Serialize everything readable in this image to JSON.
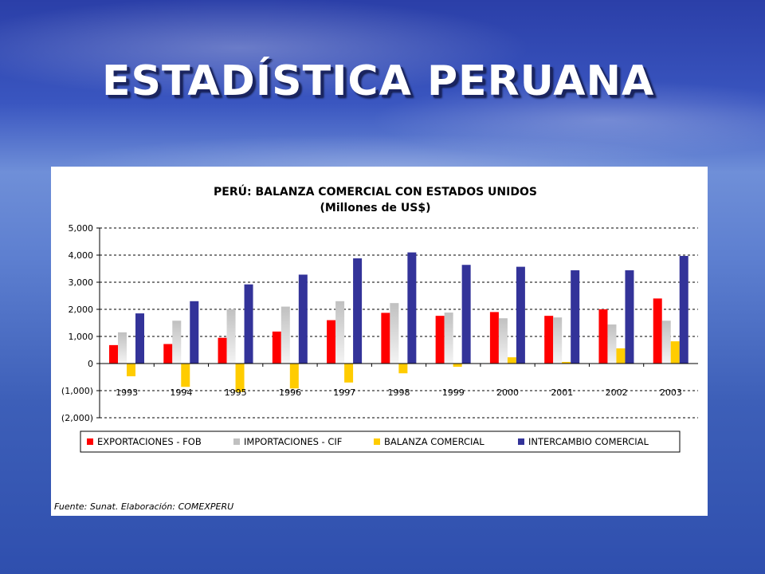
{
  "slide": {
    "title": "ESTADÍSTICA PERUANA"
  },
  "chart_data": {
    "type": "bar",
    "title": "PERÚ: BALANZA COMERCIAL CON ESTADOS UNIDOS",
    "subtitle": "(Millones de US$)",
    "xlabel": "",
    "ylabel": "",
    "categories": [
      "1993",
      "1994",
      "1995",
      "1996",
      "1997",
      "1998",
      "1999",
      "2000",
      "2001",
      "2002",
      "2003"
    ],
    "series": [
      {
        "name": "EXPORTACIONES - FOB",
        "color": "#ff0000",
        "values": [
          680,
          720,
          950,
          1180,
          1600,
          1870,
          1760,
          1900,
          1760,
          2000,
          2400
        ]
      },
      {
        "name": "IMPORTACIONES - CIF",
        "color": "#c0c0c0",
        "values": [
          1150,
          1580,
          2000,
          2100,
          2300,
          2230,
          1880,
          1670,
          1700,
          1440,
          1580
        ]
      },
      {
        "name": "BALANZA COMERCIAL",
        "color": "#ffcc00",
        "values": [
          -470,
          -860,
          -1050,
          -920,
          -700,
          -360,
          -120,
          230,
          60,
          560,
          820
        ]
      },
      {
        "name": "INTERCAMBIO COMERCIAL",
        "color": "#333399",
        "values": [
          1850,
          2300,
          2920,
          3280,
          3880,
          4100,
          3640,
          3570,
          3440,
          3440,
          3970
        ]
      }
    ],
    "yticks": [
      "5,000",
      "4,000",
      "3,000",
      "2,000",
      "1,000",
      "0",
      "(1,000)",
      "(2,000)"
    ],
    "ylim": [
      -2000,
      5000
    ],
    "grid": true,
    "legend_position": "bottom",
    "source": "Fuente: Sunat. Elaboración: COMEXPERU"
  }
}
